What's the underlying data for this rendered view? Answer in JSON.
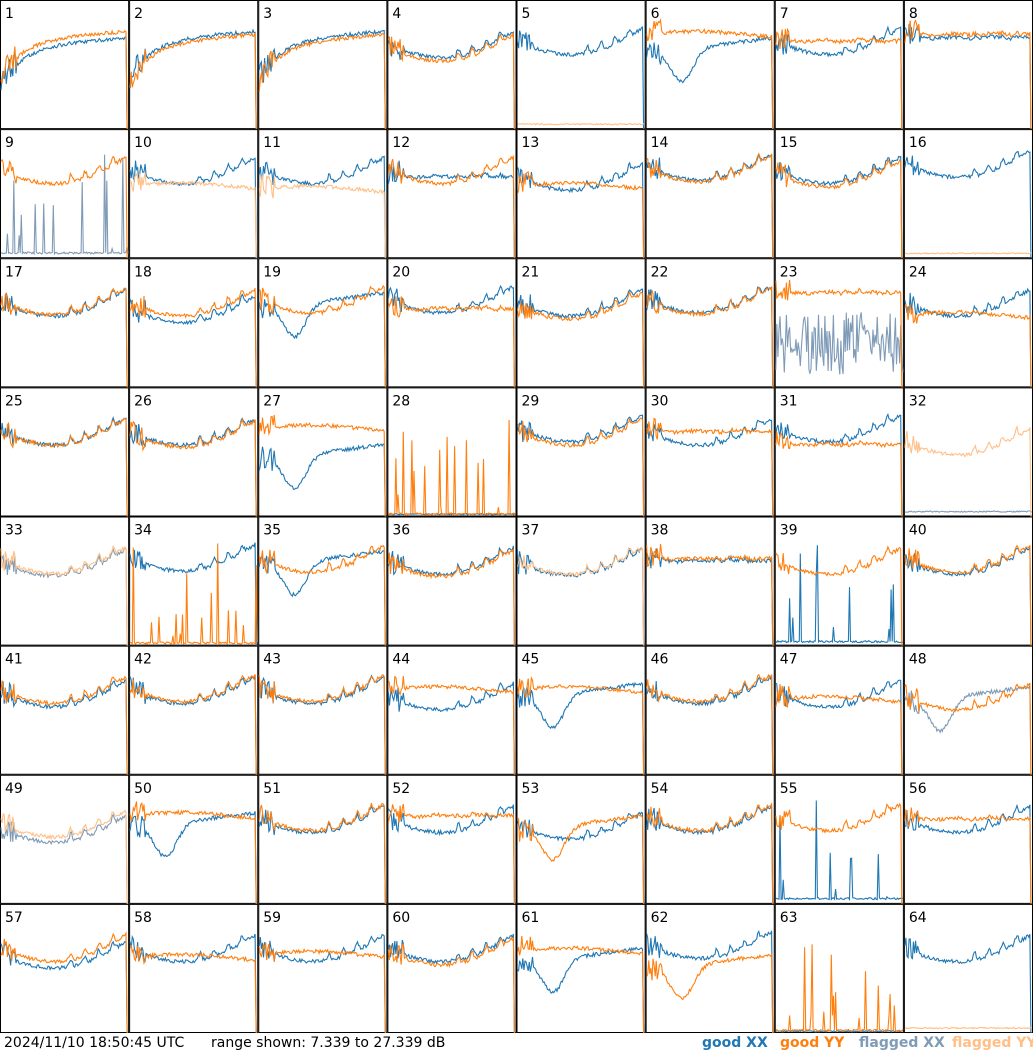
{
  "footer": {
    "timestamp": "2024/11/10 18:50:45 UTC",
    "range": "range shown: 7.339 to 27.339 dB"
  },
  "legend": [
    {
      "key": "good_xx",
      "label": "good XX",
      "color": "#1f77b4"
    },
    {
      "key": "good_yy",
      "label": "good YY",
      "color": "#ff7f0e"
    },
    {
      "key": "flagged_xx",
      "label": "flagged XX",
      "color": "#7f9bb7"
    },
    {
      "key": "flagged_yy",
      "label": "flagged YY",
      "color": "#ffbf86"
    }
  ],
  "chart_data": {
    "type": "line",
    "ylim": [
      7.339,
      27.339
    ],
    "grid_rows": 8,
    "grid_cols": 8,
    "panels": [
      {
        "label": "1",
        "xx": {
          "status": "good",
          "shape": "rising",
          "level": 20
        },
        "yy": {
          "status": "good",
          "shape": "rising",
          "level": 21
        }
      },
      {
        "label": "2",
        "xx": {
          "status": "good",
          "shape": "rising",
          "level": 21
        },
        "yy": {
          "status": "good",
          "shape": "rising",
          "level": 20.5
        }
      },
      {
        "label": "3",
        "xx": {
          "status": "good",
          "shape": "rising",
          "level": 21
        },
        "yy": {
          "status": "good",
          "shape": "rising",
          "level": 20.5
        }
      },
      {
        "label": "4",
        "xx": {
          "status": "good",
          "shape": "bowl",
          "level": 21.5
        },
        "yy": {
          "status": "good",
          "shape": "bowl",
          "level": 21
        }
      },
      {
        "label": "5",
        "xx": {
          "status": "good",
          "shape": "bowl",
          "level": 22
        },
        "yy": {
          "status": "flagged",
          "shape": "floor",
          "level": 8
        }
      },
      {
        "label": "6",
        "xx": {
          "status": "good",
          "shape": "dip",
          "level": 19
        },
        "yy": {
          "status": "good",
          "shape": "plateau",
          "level": 22
        }
      },
      {
        "label": "7",
        "xx": {
          "status": "good",
          "shape": "bowl",
          "level": 22
        },
        "yy": {
          "status": "good",
          "shape": "flat",
          "level": 21
        }
      },
      {
        "label": "8",
        "xx": {
          "status": "good",
          "shape": "flat",
          "level": 21.5
        },
        "yy": {
          "status": "good",
          "shape": "flat",
          "level": 22
        }
      },
      {
        "label": "9",
        "xx": {
          "status": "flagged",
          "shape": "spikes",
          "level": 8
        },
        "yy": {
          "status": "good",
          "shape": "bowl",
          "level": 22
        }
      },
      {
        "label": "10",
        "xx": {
          "status": "good",
          "shape": "bowl",
          "level": 22
        },
        "yy": {
          "status": "flagged",
          "shape": "plateau",
          "level": 18.5
        }
      },
      {
        "label": "11",
        "xx": {
          "status": "good",
          "shape": "bowl",
          "level": 22
        },
        "yy": {
          "status": "flagged",
          "shape": "plateau",
          "level": 18
        }
      },
      {
        "label": "12",
        "xx": {
          "status": "good",
          "shape": "flat",
          "level": 20
        },
        "yy": {
          "status": "good",
          "shape": "bowl",
          "level": 22
        }
      },
      {
        "label": "13",
        "xx": {
          "status": "good",
          "shape": "bowl",
          "level": 21
        },
        "yy": {
          "status": "good",
          "shape": "plateau",
          "level": 18.5
        }
      },
      {
        "label": "14",
        "xx": {
          "status": "good",
          "shape": "bowl",
          "level": 22.5
        },
        "yy": {
          "status": "good",
          "shape": "bowl",
          "level": 22.3
        }
      },
      {
        "label": "15",
        "xx": {
          "status": "good",
          "shape": "bowl",
          "level": 22
        },
        "yy": {
          "status": "good",
          "shape": "bowl",
          "level": 21.5
        }
      },
      {
        "label": "16",
        "xx": {
          "status": "good",
          "shape": "bowl",
          "level": 23
        },
        "yy": {
          "status": "flagged",
          "shape": "floor",
          "level": 8
        }
      },
      {
        "label": "17",
        "xx": {
          "status": "good",
          "shape": "bowl",
          "level": 21.5
        },
        "yy": {
          "status": "good",
          "shape": "bowl",
          "level": 21.7
        }
      },
      {
        "label": "18",
        "xx": {
          "status": "good",
          "shape": "bowl",
          "level": 20.5
        },
        "yy": {
          "status": "good",
          "shape": "bowl",
          "level": 21.5
        }
      },
      {
        "label": "19",
        "xx": {
          "status": "good",
          "shape": "dip",
          "level": 19.5
        },
        "yy": {
          "status": "good",
          "shape": "bowl",
          "level": 22
        }
      },
      {
        "label": "20",
        "xx": {
          "status": "good",
          "shape": "bowl",
          "level": 22
        },
        "yy": {
          "status": "good",
          "shape": "flat",
          "level": 19.5
        }
      },
      {
        "label": "21",
        "xx": {
          "status": "good",
          "shape": "bowl",
          "level": 21.5
        },
        "yy": {
          "status": "good",
          "shape": "bowl",
          "level": 21
        }
      },
      {
        "label": "22",
        "xx": {
          "status": "good",
          "shape": "bowl",
          "level": 22
        },
        "yy": {
          "status": "good",
          "shape": "bowl",
          "level": 21.8
        }
      },
      {
        "label": "23",
        "xx": {
          "status": "flagged",
          "shape": "noisy",
          "level": 14
        },
        "yy": {
          "status": "good",
          "shape": "flat",
          "level": 22
        }
      },
      {
        "label": "24",
        "xx": {
          "status": "good",
          "shape": "bowl",
          "level": 21.5
        },
        "yy": {
          "status": "good",
          "shape": "plateau",
          "level": 18.5
        }
      },
      {
        "label": "25",
        "xx": {
          "status": "good",
          "shape": "bowl",
          "level": 21.5
        },
        "yy": {
          "status": "good",
          "shape": "bowl",
          "level": 21.5
        }
      },
      {
        "label": "26",
        "xx": {
          "status": "good",
          "shape": "bowl",
          "level": 21.5
        },
        "yy": {
          "status": "good",
          "shape": "bowl",
          "level": 21.2
        }
      },
      {
        "label": "27",
        "xx": {
          "status": "good",
          "shape": "dip",
          "level": 16
        },
        "yy": {
          "status": "good",
          "shape": "plateau",
          "level": 21
        }
      },
      {
        "label": "28",
        "xx": {
          "status": "good",
          "shape": "floor",
          "level": 7.6
        },
        "yy": {
          "status": "good",
          "shape": "spikes",
          "level": 7.6
        }
      },
      {
        "label": "29",
        "xx": {
          "status": "good",
          "shape": "bowl",
          "level": 22
        },
        "yy": {
          "status": "good",
          "shape": "bowl",
          "level": 21.5
        }
      },
      {
        "label": "30",
        "xx": {
          "status": "good",
          "shape": "bowl",
          "level": 21.5
        },
        "yy": {
          "status": "good",
          "shape": "flat",
          "level": 20.5
        }
      },
      {
        "label": "31",
        "xx": {
          "status": "good",
          "shape": "bowl",
          "level": 22
        },
        "yy": {
          "status": "good",
          "shape": "flat",
          "level": 18.5
        }
      },
      {
        "label": "32",
        "xx": {
          "status": "flagged",
          "shape": "floor",
          "level": 8
        },
        "yy": {
          "status": "flagged",
          "shape": "bowl",
          "level": 20
        }
      },
      {
        "label": "33",
        "xx": {
          "status": "flagged",
          "shape": "bowl",
          "level": 21.3
        },
        "yy": {
          "status": "flagged",
          "shape": "bowl",
          "level": 21.6
        }
      },
      {
        "label": "34",
        "xx": {
          "status": "good",
          "shape": "bowl",
          "level": 22
        },
        "yy": {
          "status": "good",
          "shape": "spikes",
          "level": 7.6
        }
      },
      {
        "label": "35",
        "xx": {
          "status": "good",
          "shape": "dip",
          "level": 19.5
        },
        "yy": {
          "status": "good",
          "shape": "bowl",
          "level": 21.8
        }
      },
      {
        "label": "36",
        "xx": {
          "status": "good",
          "shape": "bowl",
          "level": 21.5
        },
        "yy": {
          "status": "good",
          "shape": "bowl",
          "level": 21.2
        }
      },
      {
        "label": "37",
        "xx": {
          "status": "good",
          "shape": "bowl",
          "level": 21.3
        },
        "yy": {
          "status": "flagged",
          "shape": "bowl",
          "level": 21.5
        }
      },
      {
        "label": "38",
        "xx": {
          "status": "good",
          "shape": "flat",
          "level": 20.5
        },
        "yy": {
          "status": "good",
          "shape": "flat",
          "level": 20.8
        }
      },
      {
        "label": "39",
        "xx": {
          "status": "good",
          "shape": "spikes",
          "level": 7.8
        },
        "yy": {
          "status": "good",
          "shape": "bowl",
          "level": 21.5
        }
      },
      {
        "label": "40",
        "xx": {
          "status": "good",
          "shape": "bowl",
          "level": 21.5
        },
        "yy": {
          "status": "good",
          "shape": "bowl",
          "level": 21.8
        }
      },
      {
        "label": "41",
        "xx": {
          "status": "good",
          "shape": "bowl",
          "level": 21
        },
        "yy": {
          "status": "good",
          "shape": "bowl",
          "level": 21.5
        }
      },
      {
        "label": "42",
        "xx": {
          "status": "good",
          "shape": "bowl",
          "level": 21.5
        },
        "yy": {
          "status": "good",
          "shape": "bowl",
          "level": 21.8
        }
      },
      {
        "label": "43",
        "xx": {
          "status": "good",
          "shape": "bowl",
          "level": 21.5
        },
        "yy": {
          "status": "good",
          "shape": "bowl",
          "level": 21.8
        }
      },
      {
        "label": "44",
        "xx": {
          "status": "good",
          "shape": "bowl",
          "level": 20.5
        },
        "yy": {
          "status": "good",
          "shape": "plateau",
          "level": 20.5
        }
      },
      {
        "label": "45",
        "xx": {
          "status": "good",
          "shape": "dip",
          "level": 19
        },
        "yy": {
          "status": "good",
          "shape": "plateau",
          "level": 20.5
        }
      },
      {
        "label": "46",
        "xx": {
          "status": "good",
          "shape": "bowl",
          "level": 21.5
        },
        "yy": {
          "status": "good",
          "shape": "bowl",
          "level": 21.8
        }
      },
      {
        "label": "47",
        "xx": {
          "status": "good",
          "shape": "bowl",
          "level": 21
        },
        "yy": {
          "status": "good",
          "shape": "plateau",
          "level": 19
        }
      },
      {
        "label": "48",
        "xx": {
          "status": "flagged",
          "shape": "dip",
          "level": 18.5
        },
        "yy": {
          "status": "good",
          "shape": "bowl",
          "level": 20.5
        }
      },
      {
        "label": "49",
        "xx": {
          "status": "flagged",
          "shape": "bowl",
          "level": 20
        },
        "yy": {
          "status": "flagged",
          "shape": "bowl",
          "level": 20.8
        }
      },
      {
        "label": "50",
        "xx": {
          "status": "good",
          "shape": "dip",
          "level": 19
        },
        "yy": {
          "status": "good",
          "shape": "plateau",
          "level": 21
        }
      },
      {
        "label": "51",
        "xx": {
          "status": "good",
          "shape": "bowl",
          "level": 21.5
        },
        "yy": {
          "status": "good",
          "shape": "bowl",
          "level": 21.8
        }
      },
      {
        "label": "52",
        "xx": {
          "status": "good",
          "shape": "bowl",
          "level": 21.5
        },
        "yy": {
          "status": "good",
          "shape": "flat",
          "level": 21
        }
      },
      {
        "label": "53",
        "xx": {
          "status": "good",
          "shape": "bowl",
          "level": 20.5
        },
        "yy": {
          "status": "good",
          "shape": "dip",
          "level": 18.5
        }
      },
      {
        "label": "54",
        "xx": {
          "status": "good",
          "shape": "bowl",
          "level": 21.5
        },
        "yy": {
          "status": "good",
          "shape": "bowl",
          "level": 21.8
        }
      },
      {
        "label": "55",
        "xx": {
          "status": "good",
          "shape": "spikes",
          "level": 8
        },
        "yy": {
          "status": "good",
          "shape": "bowl",
          "level": 21.8
        }
      },
      {
        "label": "56",
        "xx": {
          "status": "good",
          "shape": "bowl",
          "level": 21.5
        },
        "yy": {
          "status": "good",
          "shape": "flat",
          "level": 20.5
        }
      },
      {
        "label": "57",
        "xx": {
          "status": "good",
          "shape": "bowl",
          "level": 20.5
        },
        "yy": {
          "status": "good",
          "shape": "bowl",
          "level": 21.5
        }
      },
      {
        "label": "58",
        "xx": {
          "status": "good",
          "shape": "bowl",
          "level": 21.5
        },
        "yy": {
          "status": "good",
          "shape": "plateau",
          "level": 19
        }
      },
      {
        "label": "59",
        "xx": {
          "status": "good",
          "shape": "bowl",
          "level": 21.5
        },
        "yy": {
          "status": "good",
          "shape": "plateau",
          "level": 19.5
        }
      },
      {
        "label": "60",
        "xx": {
          "status": "good",
          "shape": "bowl",
          "level": 21.5
        },
        "yy": {
          "status": "good",
          "shape": "bowl",
          "level": 21
        }
      },
      {
        "label": "61",
        "xx": {
          "status": "good",
          "shape": "dip",
          "level": 18
        },
        "yy": {
          "status": "good",
          "shape": "plateau",
          "level": 20
        }
      },
      {
        "label": "62",
        "xx": {
          "status": "good",
          "shape": "bowl",
          "level": 22
        },
        "yy": {
          "status": "good",
          "shape": "dip",
          "level": 17
        }
      },
      {
        "label": "63",
        "xx": {
          "status": "good",
          "shape": "floor",
          "level": 7.5
        },
        "yy": {
          "status": "good",
          "shape": "spikes",
          "level": 7.6
        }
      },
      {
        "label": "64",
        "xx": {
          "status": "good",
          "shape": "bowl",
          "level": 21.5
        },
        "yy": {
          "status": "flagged",
          "shape": "floor",
          "level": 8
        }
      }
    ]
  }
}
